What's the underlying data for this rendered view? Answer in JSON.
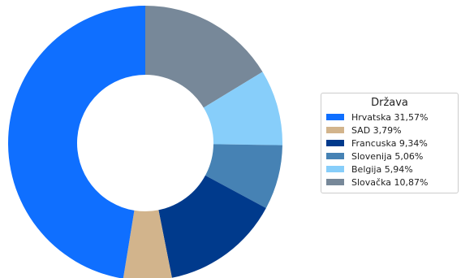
{
  "chart_data": {
    "type": "pie",
    "donut": true,
    "legend_title": "Država",
    "legend_position": "right",
    "start": "top",
    "direction": "clockwise",
    "slices": [
      {
        "label": "Slovačka 10,87%",
        "value": 10.87,
        "color": "#778899"
      },
      {
        "label": "Belgija 5,94%",
        "value": 5.94,
        "color": "#87cefa"
      },
      {
        "label": "Slovenija 5,06%",
        "value": 5.06,
        "color": "#4682b4"
      },
      {
        "label": "Francuska 9,34%",
        "value": 9.34,
        "color": "#003a8c"
      },
      {
        "label": "SAD 3,79%",
        "value": 3.79,
        "color": "#d2b48c"
      },
      {
        "label": "Hrvatska 31,57%",
        "value": 31.57,
        "color": "#0f6fff"
      }
    ],
    "legend_order": [
      "Hrvatska 31,57%",
      "SAD 3,79%",
      "Francuska 9,34%",
      "Slovenija 5,06%",
      "Belgija 5,94%",
      "Slovačka 10,87%"
    ]
  }
}
